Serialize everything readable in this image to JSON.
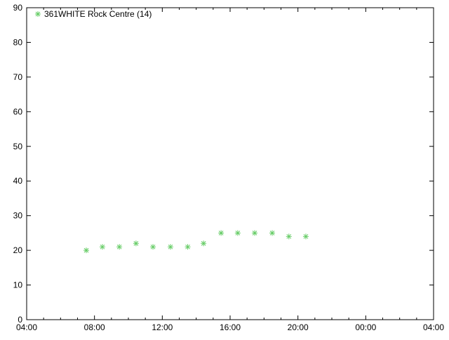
{
  "chart_data": {
    "type": "scatter",
    "title": "",
    "xlabel": "",
    "ylabel": "",
    "xlim": [
      "04:00",
      "04:00 (+1 day)"
    ],
    "ylim": [
      0,
      90
    ],
    "x_tick_labels": [
      "04:00",
      "08:00",
      "12:00",
      "16:00",
      "20:00",
      "00:00",
      "04:00"
    ],
    "y_tick_labels": [
      "0",
      "10",
      "20",
      "30",
      "40",
      "50",
      "60",
      "70",
      "80",
      "90"
    ],
    "grid": false,
    "legend_position": "top-left",
    "marker": "star",
    "series": [
      {
        "name": "361WHITE Rock Centre (14)",
        "color": "#66cc66",
        "x": [
          "07:31",
          "08:28",
          "09:28",
          "10:27",
          "11:27",
          "12:29",
          "13:30",
          "14:26",
          "15:28",
          "16:27",
          "17:27",
          "18:29",
          "19:28",
          "20:28"
        ],
        "y": [
          20,
          21,
          21,
          22,
          21,
          21,
          21,
          22,
          25,
          25,
          25,
          25,
          24,
          24
        ]
      }
    ]
  }
}
